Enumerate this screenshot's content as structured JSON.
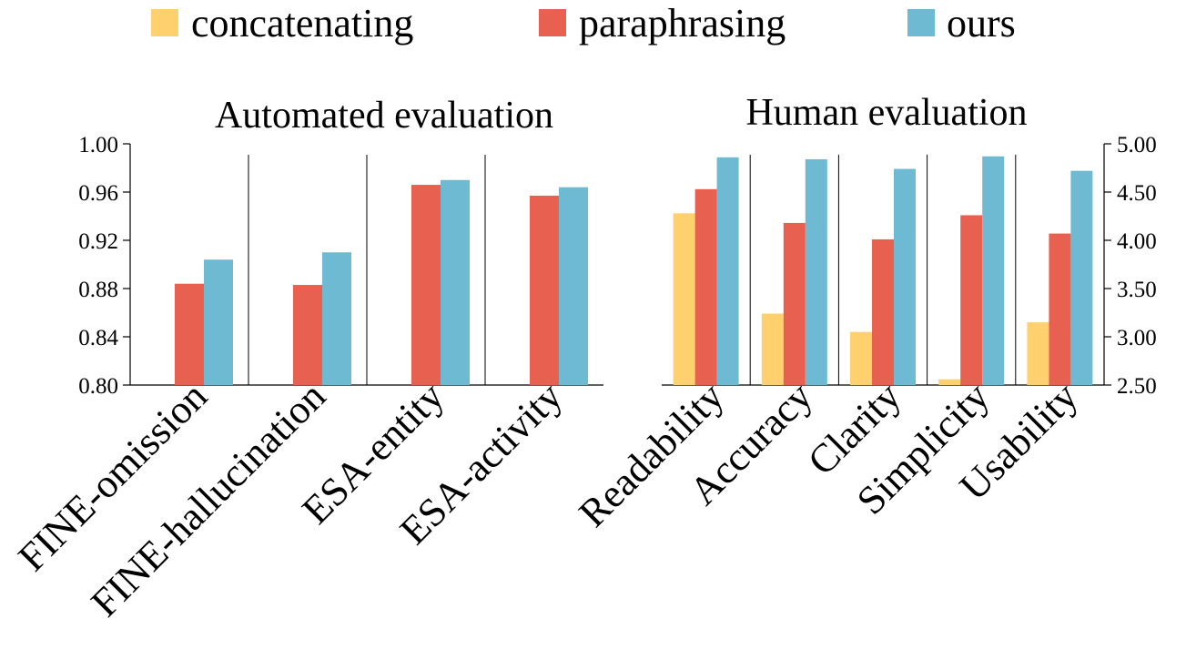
{
  "legend": {
    "items": [
      {
        "label": "concatenating",
        "color": "#FFD06E"
      },
      {
        "label": "paraphrasing",
        "color": "#E8604F"
      },
      {
        "label": "ours",
        "color": "#6FBAD3"
      }
    ]
  },
  "chart_data": [
    {
      "type": "bar",
      "title": "Automated evaluation",
      "categories": [
        "FINE-omission",
        "FINE-hallucination",
        "ESA-entity",
        "ESA-activity"
      ],
      "series": [
        {
          "name": "concatenating",
          "values": [
            null,
            null,
            null,
            null
          ]
        },
        {
          "name": "paraphrasing",
          "values": [
            0.884,
            0.883,
            0.966,
            0.957
          ]
        },
        {
          "name": "ours",
          "values": [
            0.904,
            0.91,
            0.97,
            0.964
          ]
        }
      ],
      "ylim": [
        0.8,
        1.0
      ],
      "yticks": [
        "0.80",
        "0.84",
        "0.88",
        "0.92",
        "0.96",
        "1.00"
      ],
      "yaxis_side": "left",
      "xlabel": "",
      "ylabel": ""
    },
    {
      "type": "bar",
      "title": "Human evaluation",
      "categories": [
        "Readability",
        "Accuracy",
        "Clarity",
        "Simplicity",
        "Usability"
      ],
      "series": [
        {
          "name": "concatenating",
          "values": [
            4.28,
            3.24,
            3.05,
            2.56,
            3.15
          ]
        },
        {
          "name": "paraphrasing",
          "values": [
            4.53,
            4.18,
            4.01,
            4.26,
            4.07
          ]
        },
        {
          "name": "ours",
          "values": [
            4.86,
            4.84,
            4.74,
            4.87,
            4.72
          ]
        }
      ],
      "ylim": [
        2.5,
        5.0
      ],
      "yticks": [
        "2.50",
        "3.00",
        "3.50",
        "4.00",
        "4.50",
        "5.00"
      ],
      "yaxis_side": "right",
      "xlabel": "",
      "ylabel": ""
    }
  ]
}
